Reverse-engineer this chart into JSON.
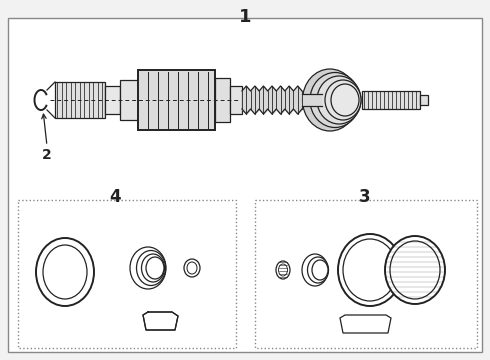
{
  "bg_color": "#f2f2f2",
  "line_color": "#222222",
  "border_color": "#444444",
  "white": "#ffffff",
  "light_gray": "#d8d8d8",
  "title": "1",
  "label2": "2",
  "label3": "3",
  "label4": "4",
  "fig_width": 4.9,
  "fig_height": 3.6,
  "dpi": 100
}
